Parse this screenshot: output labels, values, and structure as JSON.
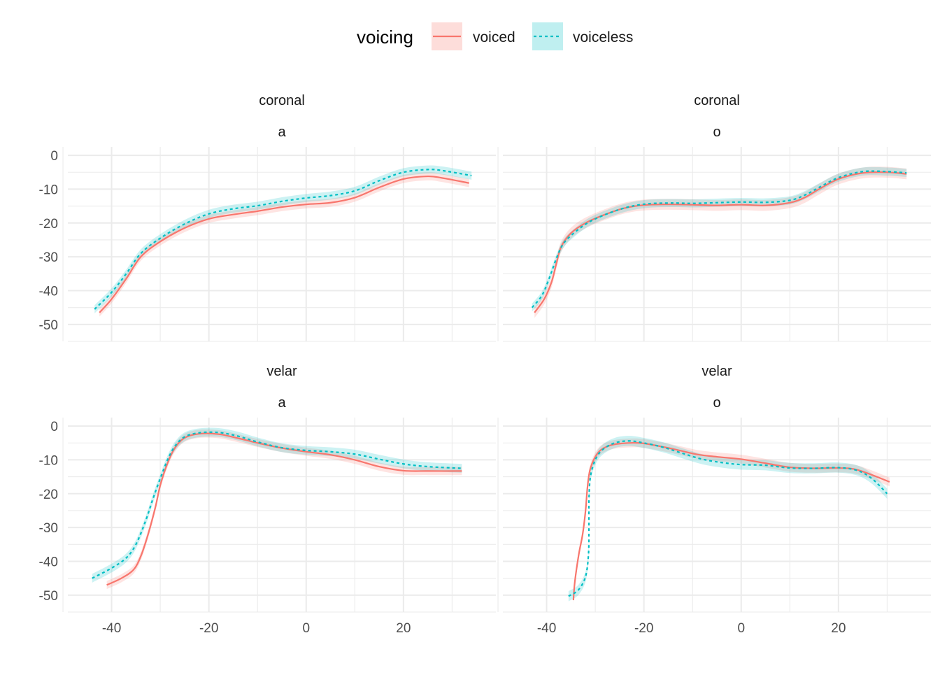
{
  "chart_data": {
    "type": "line",
    "legend": {
      "title": "voicing",
      "position": "top",
      "entries": [
        {
          "label": "voiced",
          "color": "#F8766D",
          "linetype": "solid"
        },
        {
          "label": "voiceless",
          "color": "#00BFC4",
          "linetype": "dashed"
        }
      ]
    },
    "grid": true,
    "xlim": [
      -49,
      39
    ],
    "ylim": [
      -55,
      2.5
    ],
    "x_ticks": [
      -40,
      -20,
      0,
      20
    ],
    "y_ticks": [
      0,
      -10,
      -20,
      -30,
      -40,
      -50
    ],
    "panels": [
      {
        "strip": [
          "coronal",
          "a"
        ],
        "series": [
          {
            "name": "voiced",
            "band": 1.2,
            "points": [
              [
                -42.5,
                -46.5
              ],
              [
                -40,
                -42.5
              ],
              [
                -37,
                -36.5
              ],
              [
                -34,
                -30
              ],
              [
                -30,
                -25.5
              ],
              [
                -25,
                -21.5
              ],
              [
                -20,
                -18.8
              ],
              [
                -15,
                -17.5
              ],
              [
                -10,
                -16.5
              ],
              [
                -5,
                -15.3
              ],
              [
                0,
                -14.5
              ],
              [
                5,
                -14
              ],
              [
                10,
                -12.5
              ],
              [
                15,
                -9.5
              ],
              [
                20,
                -7
              ],
              [
                25,
                -6.2
              ],
              [
                28,
                -6.7
              ],
              [
                33.5,
                -8.2
              ]
            ]
          },
          {
            "name": "voiceless",
            "band": 1.2,
            "points": [
              [
                -43.5,
                -45.5
              ],
              [
                -40,
                -40.5
              ],
              [
                -37,
                -35
              ],
              [
                -34,
                -29
              ],
              [
                -30,
                -24.5
              ],
              [
                -25,
                -20.3
              ],
              [
                -20,
                -17.3
              ],
              [
                -15,
                -15.8
              ],
              [
                -10,
                -14.9
              ],
              [
                -5,
                -13.6
              ],
              [
                0,
                -12.6
              ],
              [
                5,
                -11.9
              ],
              [
                10,
                -10.5
              ],
              [
                15,
                -7.5
              ],
              [
                20,
                -5
              ],
              [
                25,
                -4.2
              ],
              [
                28,
                -4.5
              ],
              [
                34,
                -6
              ]
            ]
          }
        ]
      },
      {
        "strip": [
          "coronal",
          "o"
        ],
        "series": [
          {
            "name": "voiced",
            "band": 1.6,
            "points": [
              [
                -42.5,
                -46.5
              ],
              [
                -40.5,
                -42.5
              ],
              [
                -39,
                -37.5
              ],
              [
                -38,
                -32
              ],
              [
                -37,
                -27
              ],
              [
                -35,
                -23
              ],
              [
                -32,
                -20
              ],
              [
                -28,
                -17.5
              ],
              [
                -24,
                -15.6
              ],
              [
                -20,
                -14.7
              ],
              [
                -15,
                -14.5
              ],
              [
                -10,
                -14.6
              ],
              [
                -5,
                -14.8
              ],
              [
                0,
                -14.6
              ],
              [
                5,
                -14.8
              ],
              [
                10,
                -14
              ],
              [
                13,
                -12.5
              ],
              [
                16,
                -10
              ],
              [
                20,
                -7
              ],
              [
                25,
                -5.2
              ],
              [
                30,
                -5
              ],
              [
                34,
                -5.5
              ]
            ]
          },
          {
            "name": "voiceless",
            "band": 1.2,
            "points": [
              [
                -43,
                -45
              ],
              [
                -41,
                -41.5
              ],
              [
                -39.5,
                -36.5
              ],
              [
                -38,
                -30.5
              ],
              [
                -36.5,
                -26
              ],
              [
                -34,
                -22.5
              ],
              [
                -31,
                -19.5
              ],
              [
                -27,
                -17
              ],
              [
                -23,
                -15.2
              ],
              [
                -19,
                -14.3
              ],
              [
                -14,
                -14.1
              ],
              [
                -10,
                -14.2
              ],
              [
                -5,
                -14
              ],
              [
                0,
                -13.8
              ],
              [
                5,
                -13.9
              ],
              [
                10,
                -13.3
              ],
              [
                13,
                -11.8
              ],
              [
                16,
                -9.5
              ],
              [
                20,
                -6.6
              ],
              [
                25,
                -4.8
              ],
              [
                30,
                -4.8
              ],
              [
                34,
                -5.2
              ]
            ]
          }
        ]
      },
      {
        "strip": [
          "velar",
          "a"
        ],
        "series": [
          {
            "name": "voiced",
            "band": 1.2,
            "points": [
              [
                -41,
                -47
              ],
              [
                -38,
                -45
              ],
              [
                -35.5,
                -42.5
              ],
              [
                -34,
                -38.5
              ],
              [
                -32.5,
                -32
              ],
              [
                -31,
                -24
              ],
              [
                -30,
                -17.5
              ],
              [
                -28.5,
                -11
              ],
              [
                -27,
                -6.5
              ],
              [
                -25,
                -3.5
              ],
              [
                -22,
                -2.3
              ],
              [
                -18,
                -2.4
              ],
              [
                -14,
                -3.6
              ],
              [
                -10,
                -5
              ],
              [
                -5,
                -6.5
              ],
              [
                0,
                -7.6
              ],
              [
                5,
                -8.5
              ],
              [
                10,
                -10
              ],
              [
                15,
                -12
              ],
              [
                20,
                -13.2
              ],
              [
                25,
                -13.3
              ],
              [
                32,
                -13.3
              ]
            ]
          },
          {
            "name": "voiceless",
            "band": 1.3,
            "points": [
              [
                -44,
                -45
              ],
              [
                -40,
                -42
              ],
              [
                -37,
                -39
              ],
              [
                -35,
                -35
              ],
              [
                -33,
                -28
              ],
              [
                -31.5,
                -21.5
              ],
              [
                -30,
                -15.5
              ],
              [
                -28.5,
                -10
              ],
              [
                -27,
                -6
              ],
              [
                -25,
                -3.2
              ],
              [
                -22,
                -2
              ],
              [
                -18,
                -1.9
              ],
              [
                -14,
                -3
              ],
              [
                -10,
                -4.7
              ],
              [
                -5,
                -6.4
              ],
              [
                0,
                -7.2
              ],
              [
                5,
                -7.6
              ],
              [
                10,
                -8.3
              ],
              [
                15,
                -9.8
              ],
              [
                20,
                -11.2
              ],
              [
                25,
                -12
              ],
              [
                32,
                -12.5
              ]
            ]
          }
        ]
      },
      {
        "strip": [
          "velar",
          "o"
        ],
        "series": [
          {
            "name": "voiced",
            "band": 1.3,
            "points": [
              [
                -34.5,
                -51.5
              ],
              [
                -34.2,
                -46
              ],
              [
                -33.4,
                -38
              ],
              [
                -32.6,
                -32
              ],
              [
                -32,
                -25
              ],
              [
                -31.6,
                -18
              ],
              [
                -31,
                -12.5
              ],
              [
                -29.5,
                -8
              ],
              [
                -27.5,
                -6
              ],
              [
                -25,
                -5.2
              ],
              [
                -21,
                -5
              ],
              [
                -17,
                -5.9
              ],
              [
                -13,
                -7.1
              ],
              [
                -9,
                -8.4
              ],
              [
                -5,
                -9.1
              ],
              [
                0,
                -9.8
              ],
              [
                5,
                -11
              ],
              [
                10,
                -12.2
              ],
              [
                15,
                -12.5
              ],
              [
                20,
                -12.4
              ],
              [
                24,
                -13
              ],
              [
                30.5,
                -16.5
              ]
            ]
          },
          {
            "name": "voiceless",
            "band": 1.5,
            "points": [
              [
                -35.5,
                -50.3
              ],
              [
                -33.5,
                -48.5
              ],
              [
                -32,
                -44.5
              ],
              [
                -31.4,
                -38
              ],
              [
                -31.3,
                -30
              ],
              [
                -31.3,
                -22
              ],
              [
                -31,
                -15
              ],
              [
                -30,
                -10
              ],
              [
                -28.5,
                -7
              ],
              [
                -26,
                -5
              ],
              [
                -23,
                -4.4
              ],
              [
                -20,
                -5
              ],
              [
                -16,
                -6.3
              ],
              [
                -12,
                -8.1
              ],
              [
                -8,
                -9.8
              ],
              [
                -4,
                -10.8
              ],
              [
                0,
                -11.4
              ],
              [
                5,
                -11.6
              ],
              [
                10,
                -12.4
              ],
              [
                15,
                -12.5
              ],
              [
                20,
                -12.3
              ],
              [
                24,
                -13.2
              ],
              [
                27,
                -15.7
              ],
              [
                30,
                -20
              ]
            ]
          }
        ]
      }
    ]
  }
}
